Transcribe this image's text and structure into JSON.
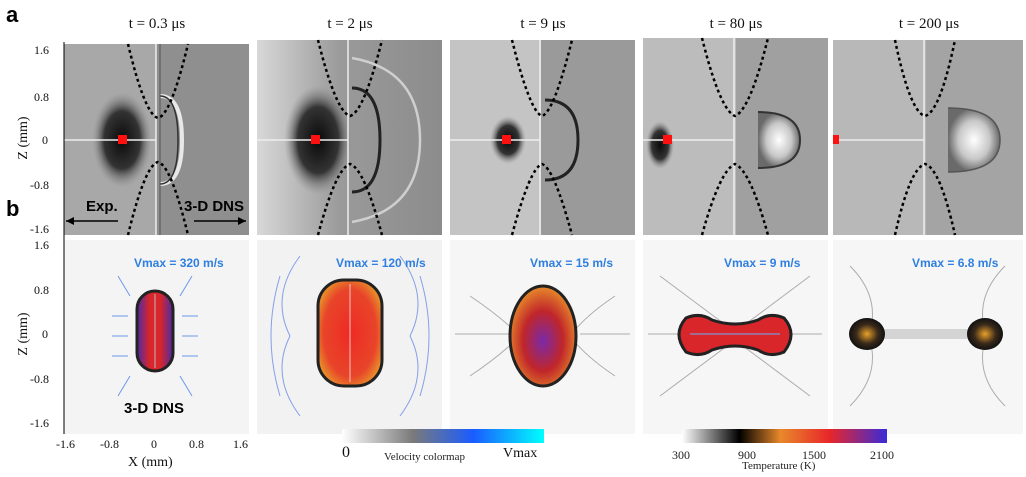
{
  "panel_a": {
    "label": "a",
    "times": [
      "t = 0.3 μs",
      "t = 2 μs",
      "t = 9 μs",
      "t = 80 μs",
      "t = 200 μs"
    ],
    "y_axis_title": "Z (mm)",
    "y_ticks": [
      "1.6",
      "0.8",
      "0",
      "-0.8",
      "-1.6"
    ],
    "exp_label": "Exp.",
    "dns_label": "3-D DNS"
  },
  "panel_b": {
    "label": "b",
    "vmax": [
      "Vmax = 320 m/s",
      "Vmax = 120 m/s",
      "Vmax = 15 m/s",
      "Vmax = 9 m/s",
      "Vmax = 6.8 m/s"
    ],
    "dns_label": "3-D DNS",
    "y_axis_title": "Z (mm)",
    "y_ticks": [
      "1.6",
      "0.8",
      "0",
      "-0.8",
      "-1.6"
    ],
    "x_axis_title": "X (mm)",
    "x_ticks": [
      "-1.6",
      "-0.8",
      "0",
      "0.8",
      "1.6"
    ]
  },
  "velocity_colorbar": {
    "min_label": "0",
    "title": "Velocity colormap",
    "max_label": "Vmax",
    "colors": [
      "#ffffff",
      "#7a7a7a",
      "#1a5cff",
      "#00ffff"
    ]
  },
  "temperature_colorbar": {
    "ticks": [
      "300",
      "900",
      "1500",
      "2100"
    ],
    "title": "Temperature  (K)",
    "colors": [
      "#ffffff",
      "#000000",
      "#e8882a",
      "#e8262a",
      "#3a2bd8"
    ]
  }
}
